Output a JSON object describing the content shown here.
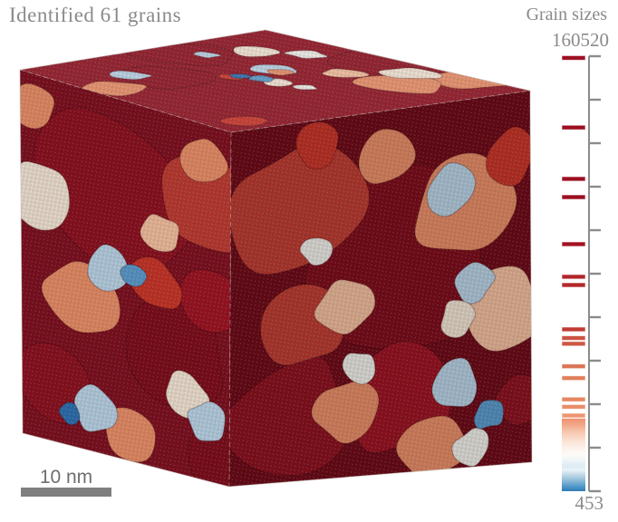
{
  "caption": "Identified 61 grains",
  "scale_bar": {
    "label": "10 nm",
    "bar_color": "#7f7f7f"
  },
  "legend": {
    "title": "Grain sizes",
    "max_label": "160520",
    "min_label": "453",
    "axis_color": "#8c8c8c",
    "tick_count": 11,
    "bars": [
      {
        "pos": 0.004,
        "color": "#9c0f20"
      },
      {
        "pos": 0.164,
        "color": "#9c0f20"
      },
      {
        "pos": 0.282,
        "color": "#9c0f20"
      },
      {
        "pos": 0.324,
        "color": "#9c0f20"
      },
      {
        "pos": 0.432,
        "color": "#a31222"
      },
      {
        "pos": 0.507,
        "color": "#b2252a"
      },
      {
        "pos": 0.526,
        "color": "#b5292a"
      },
      {
        "pos": 0.628,
        "color": "#c13b33"
      },
      {
        "pos": 0.648,
        "color": "#cc5343"
      },
      {
        "pos": 0.661,
        "color": "#cd5744"
      },
      {
        "pos": 0.713,
        "color": "#db7355"
      },
      {
        "pos": 0.74,
        "color": "#e07e5b"
      },
      {
        "pos": 0.789,
        "color": "#e68760"
      },
      {
        "pos": 0.806,
        "color": "#e98d66"
      },
      {
        "pos": 0.826,
        "color": "#ec9770"
      }
    ],
    "gradient": {
      "from_pos": 0.833,
      "to_pos": 1.0,
      "stops": [
        {
          "p": 0.0,
          "c": "#ee9271"
        },
        {
          "p": 0.08,
          "c": "#f1a585"
        },
        {
          "p": 0.18,
          "c": "#f6c6ad"
        },
        {
          "p": 0.3,
          "c": "#fae2d2"
        },
        {
          "p": 0.4,
          "c": "#fcf1e9"
        },
        {
          "p": 0.5,
          "c": "#fdfbf8"
        },
        {
          "p": 0.58,
          "c": "#eef4f8"
        },
        {
          "p": 0.65,
          "c": "#dcebf3"
        },
        {
          "p": 0.71,
          "c": "#e9f1f7"
        },
        {
          "p": 0.77,
          "c": "#c3dbe9"
        },
        {
          "p": 0.85,
          "c": "#8fbcd8"
        },
        {
          "p": 0.93,
          "c": "#549ac9"
        },
        {
          "p": 1.0,
          "c": "#2e7cb5"
        }
      ]
    }
  },
  "render": {
    "grain_count": 61,
    "text_color": "#8a8a8a",
    "wireframe_color": "#c4beb8",
    "palette": {
      "darkred": "#8c1220",
      "darkred2": "#7d0e1c",
      "darkred3": "#9b1423",
      "red": "#bb3b32",
      "brightred": "#c63428",
      "salmon": "#e68c66",
      "peach": "#f0bc9c",
      "cream": "#efe1d1",
      "white": "#ecebe6",
      "lightblue": "#b7d0e3",
      "blue": "#5a98c9",
      "darkblue": "#2d6fae"
    },
    "face_base": {
      "left": "#7e1120",
      "right": "#6f0c19",
      "top": "#8e1322"
    }
  }
}
